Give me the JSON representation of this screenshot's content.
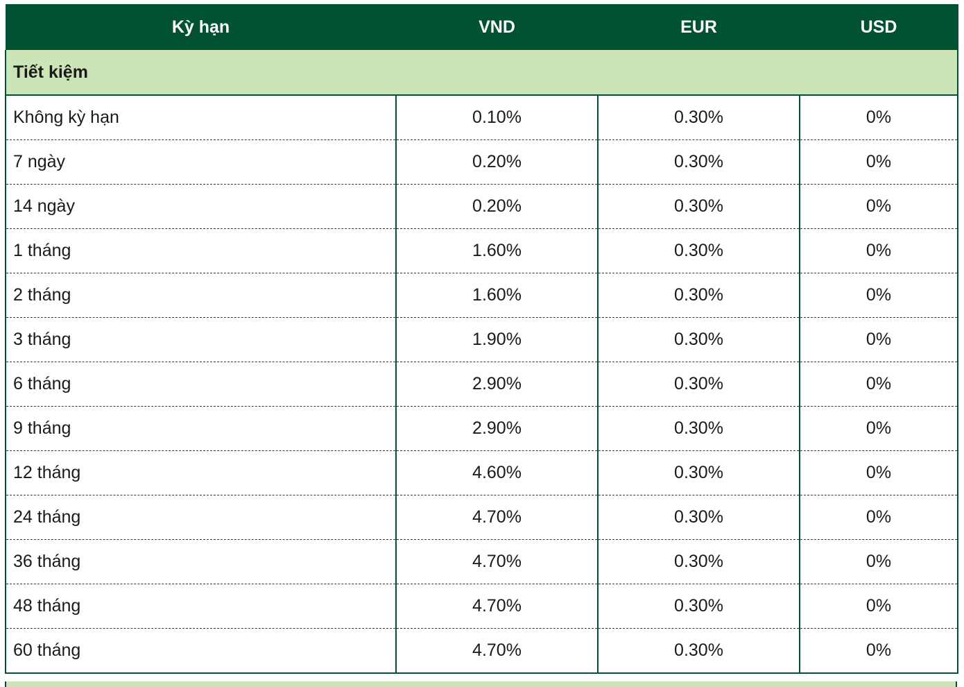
{
  "header": {
    "term_label": "Kỳ hạn",
    "vnd_label": "VND",
    "eur_label": "EUR",
    "usd_label": "USD"
  },
  "section": {
    "title": "Tiết kiệm"
  },
  "rows": [
    {
      "term": "Không kỳ hạn",
      "vnd": "0.10%",
      "eur": "0.30%",
      "usd": "0%"
    },
    {
      "term": "7 ngày",
      "vnd": "0.20%",
      "eur": "0.30%",
      "usd": "0%"
    },
    {
      "term": "14 ngày",
      "vnd": "0.20%",
      "eur": "0.30%",
      "usd": "0%"
    },
    {
      "term": "1 tháng",
      "vnd": "1.60%",
      "eur": "0.30%",
      "usd": "0%"
    },
    {
      "term": "2 tháng",
      "vnd": "1.60%",
      "eur": "0.30%",
      "usd": "0%"
    },
    {
      "term": "3 tháng",
      "vnd": "1.90%",
      "eur": "0.30%",
      "usd": "0%"
    },
    {
      "term": "6 tháng",
      "vnd": "2.90%",
      "eur": "0.30%",
      "usd": "0%"
    },
    {
      "term": "9 tháng",
      "vnd": "2.90%",
      "eur": "0.30%",
      "usd": "0%"
    },
    {
      "term": "12 tháng",
      "vnd": "4.60%",
      "eur": "0.30%",
      "usd": "0%"
    },
    {
      "term": "24 tháng",
      "vnd": "4.70%",
      "eur": "0.30%",
      "usd": "0%"
    },
    {
      "term": "36 tháng",
      "vnd": "4.70%",
      "eur": "0.30%",
      "usd": "0%"
    },
    {
      "term": "48 tháng",
      "vnd": "4.70%",
      "eur": "0.30%",
      "usd": "0%"
    },
    {
      "term": "60 tháng",
      "vnd": "4.70%",
      "eur": "0.30%",
      "usd": "0%"
    }
  ],
  "colors": {
    "header_bg": "#005232",
    "section_bg": "#cce5b7",
    "border": "#005232"
  }
}
